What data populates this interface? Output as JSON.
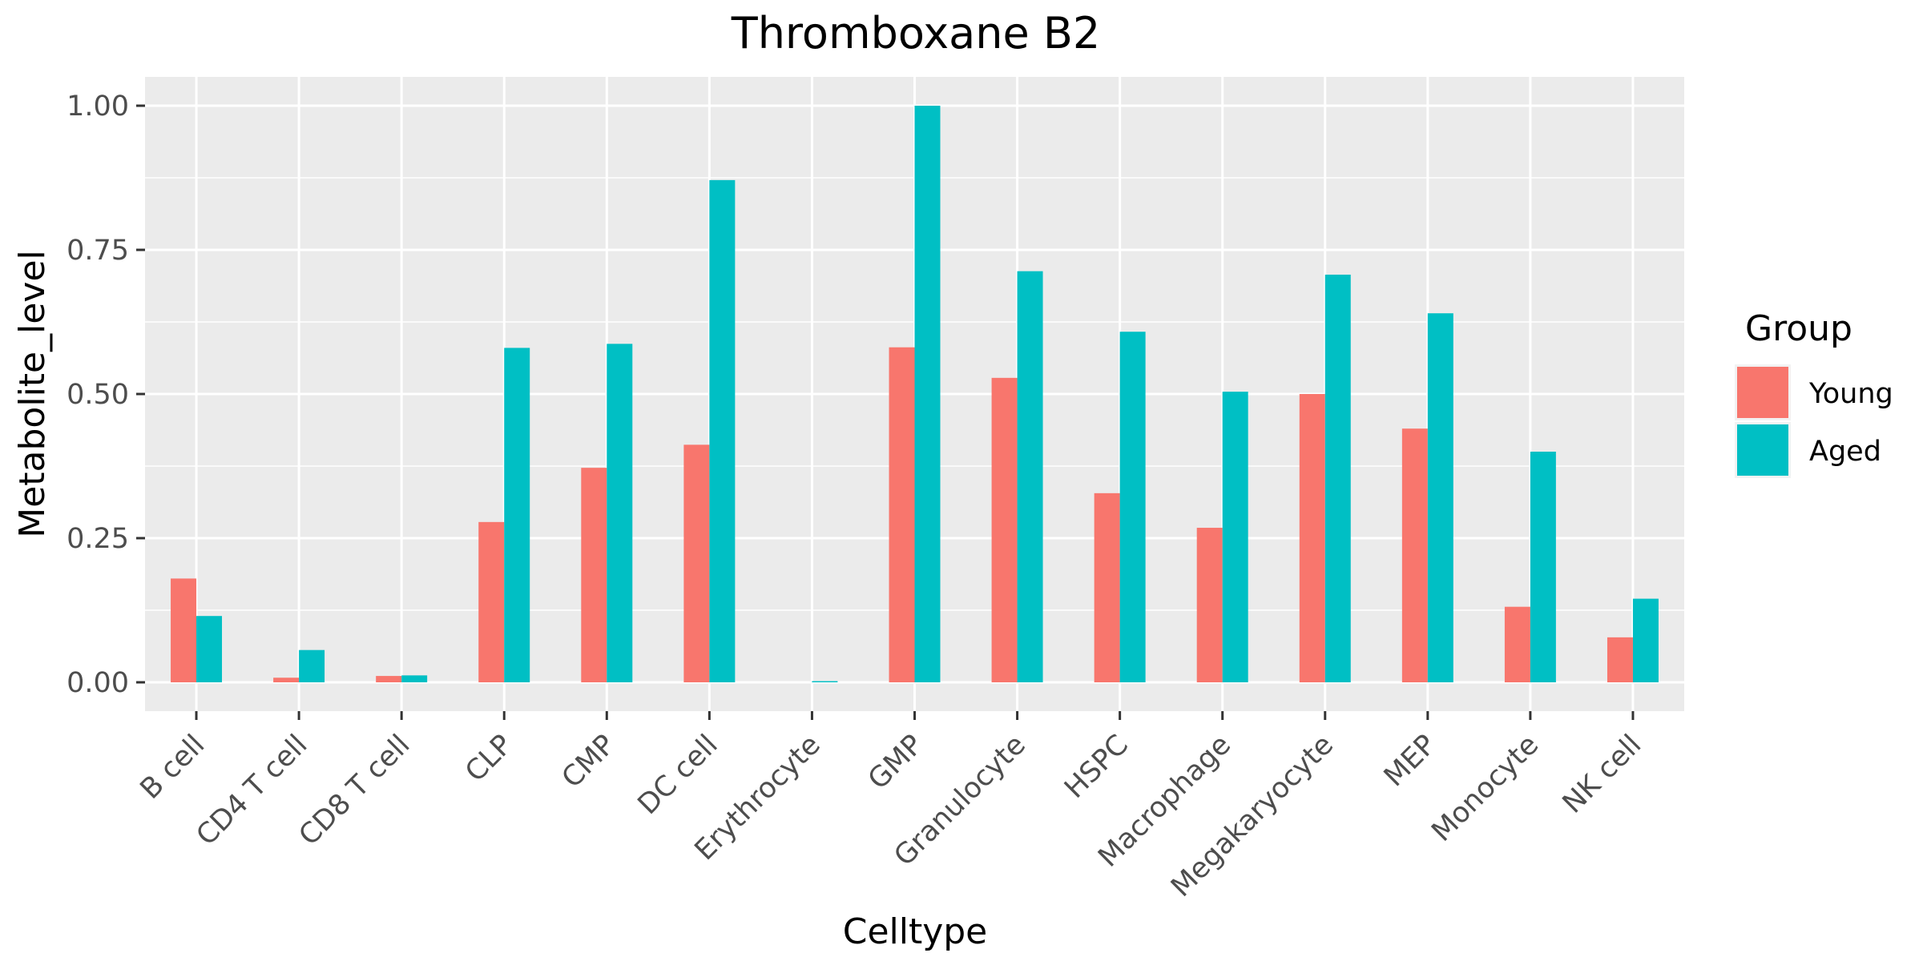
{
  "chart_data": {
    "type": "bar",
    "title": "Thromboxane B2",
    "xlabel": "Celltype",
    "ylabel": "Metabolite_level",
    "ylim": [
      -0.05,
      1.05
    ],
    "yticks": [
      0.0,
      0.25,
      0.5,
      0.75,
      1.0
    ],
    "ytick_labels": [
      "0.00",
      "0.25",
      "0.50",
      "0.75",
      "1.00"
    ],
    "grid": true,
    "legend_position": "right",
    "legend_title": "Group",
    "categories": [
      "B cell",
      "CD4 T cell",
      "CD8 T cell",
      "CLP",
      "CMP",
      "DC cell",
      "Erythrocyte",
      "GMP",
      "Granulocyte",
      "HSPC",
      "Macrophage",
      "Megakaryocyte",
      "MEP",
      "Monocyte",
      "NK cell"
    ],
    "series": [
      {
        "name": "Young",
        "color": "#F8766D",
        "values": [
          0.18,
          0.008,
          0.011,
          0.278,
          0.372,
          0.412,
          0.0,
          0.581,
          0.528,
          0.328,
          0.268,
          0.5,
          0.44,
          0.131,
          0.078
        ]
      },
      {
        "name": "Aged",
        "color": "#00BFC4",
        "values": [
          0.115,
          0.056,
          0.012,
          0.58,
          0.587,
          0.871,
          0.002,
          1.0,
          0.713,
          0.608,
          0.504,
          0.707,
          0.64,
          0.4,
          0.145
        ]
      }
    ]
  },
  "style": {
    "panel_background": "#EBEBEB",
    "grid_color": "#FFFFFF",
    "tick_color": "#333333"
  }
}
